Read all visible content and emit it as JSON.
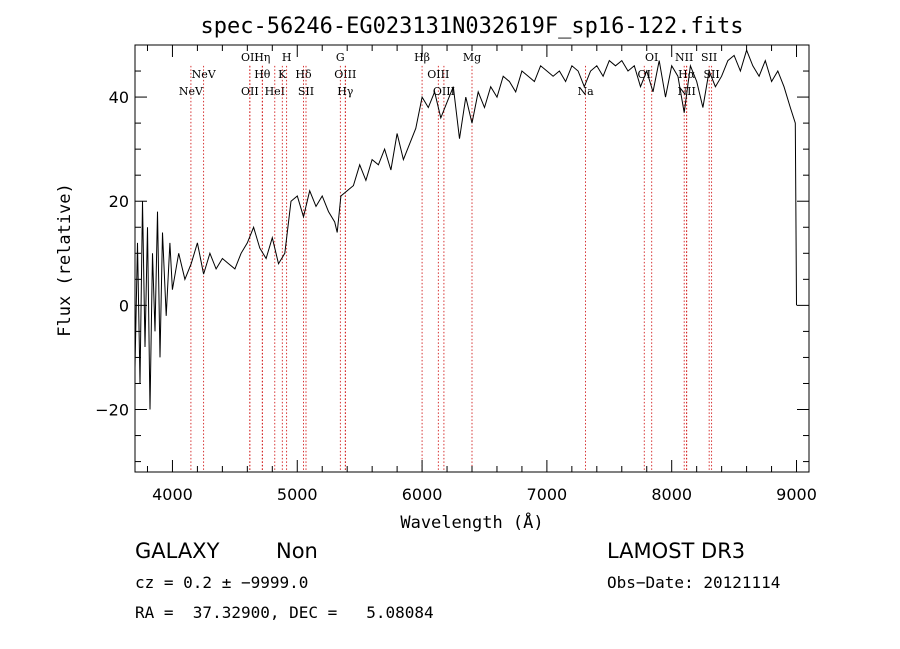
{
  "chart_data": {
    "type": "line",
    "title": "spec-56246-EG023131N032619F_sp16-122.fits",
    "xlabel": "Wavelength (Å)",
    "ylabel": "Flux (relative)",
    "xlim": [
      3700,
      9100
    ],
    "ylim": [
      -32,
      50
    ],
    "xticks": [
      4000,
      5000,
      6000,
      7000,
      8000,
      9000
    ],
    "xtick_labels": [
      "4000",
      "5000",
      "6000",
      "7000",
      "8000",
      "9000"
    ],
    "yticks": [
      -20,
      0,
      20,
      40
    ],
    "ytick_labels": [
      "−20",
      "0",
      "20",
      "40"
    ],
    "series": [
      {
        "name": "flux",
        "x": [
          3700,
          3720,
          3740,
          3760,
          3780,
          3800,
          3820,
          3840,
          3860,
          3880,
          3900,
          3920,
          3950,
          3980,
          4000,
          4050,
          4100,
          4150,
          4200,
          4250,
          4300,
          4350,
          4400,
          4450,
          4500,
          4550,
          4600,
          4650,
          4700,
          4750,
          4800,
          4850,
          4900,
          4950,
          5000,
          5050,
          5100,
          5150,
          5200,
          5250,
          5300,
          5320,
          5350,
          5400,
          5450,
          5500,
          5550,
          5600,
          5650,
          5700,
          5750,
          5800,
          5850,
          5900,
          5950,
          6000,
          6050,
          6100,
          6150,
          6200,
          6250,
          6300,
          6350,
          6400,
          6450,
          6500,
          6550,
          6600,
          6650,
          6700,
          6750,
          6800,
          6850,
          6900,
          6950,
          7000,
          7050,
          7100,
          7150,
          7200,
          7250,
          7300,
          7350,
          7400,
          7450,
          7500,
          7550,
          7600,
          7650,
          7700,
          7750,
          7800,
          7850,
          7900,
          7950,
          8000,
          8050,
          8100,
          8150,
          8200,
          8250,
          8300,
          8350,
          8400,
          8450,
          8500,
          8550,
          8600,
          8650,
          8700,
          8750,
          8800,
          8850,
          8900,
          8950,
          8990,
          9000
        ],
        "y": [
          -12,
          12,
          -15,
          20,
          -8,
          15,
          -20,
          10,
          -5,
          18,
          -10,
          14,
          -2,
          12,
          3,
          10,
          5,
          8,
          12,
          6,
          10,
          7,
          9,
          8,
          7,
          10,
          12,
          15,
          11,
          9,
          13,
          8,
          10,
          20,
          21,
          17,
          22,
          19,
          21,
          18,
          16,
          14,
          21,
          22,
          23,
          27,
          24,
          28,
          27,
          30,
          26,
          33,
          28,
          31,
          34,
          40,
          38,
          41,
          36,
          39,
          42,
          32,
          40,
          35,
          41,
          38,
          42,
          40,
          44,
          43,
          41,
          45,
          44,
          43,
          46,
          45,
          44,
          45,
          43,
          46,
          45,
          42,
          45,
          46,
          44,
          47,
          46,
          47,
          45,
          46,
          42,
          45,
          41,
          47,
          40,
          46,
          44,
          37,
          46,
          43,
          38,
          45,
          42,
          44,
          47,
          48,
          45,
          49,
          46,
          44,
          47,
          43,
          45,
          42,
          38,
          35,
          0
        ]
      }
    ],
    "lines": [
      {
        "name": "NeV",
        "x": 4148,
        "row": 1
      },
      {
        "name": "NeV",
        "x": 4250,
        "row": 0
      },
      {
        "name": "OII",
        "x": 4620,
        "row": 2
      },
      {
        "name": "OII",
        "x": 4620,
        "row": -1
      },
      {
        "name": "Hη",
        "x": 4720,
        "row": -1
      },
      {
        "name": "Hθ",
        "x": 4720,
        "row": 0
      },
      {
        "name": "HeI",
        "x": 4820,
        "row": 2
      },
      {
        "name": "K",
        "x": 4880,
        "row": 0
      },
      {
        "name": "H",
        "x": 4915,
        "row": -1
      },
      {
        "name": "Hδ",
        "x": 5050,
        "row": 0
      },
      {
        "name": "SII",
        "x": 5070,
        "row": 2
      },
      {
        "name": "G",
        "x": 5345,
        "row": -1
      },
      {
        "name": "OIII",
        "x": 5385,
        "row": 0
      },
      {
        "name": "Hγ",
        "x": 5385,
        "row": 2
      },
      {
        "name": "Hβ",
        "x": 6000,
        "row": -1
      },
      {
        "name": "OIII",
        "x": 6130,
        "row": 0
      },
      {
        "name": "OIII",
        "x": 6175,
        "row": 2
      },
      {
        "name": "Mg",
        "x": 6400,
        "row": -1
      },
      {
        "name": "Na",
        "x": 7310,
        "row": 2
      },
      {
        "name": "OI",
        "x": 7780,
        "row": 0
      },
      {
        "name": "OI",
        "x": 7840,
        "row": -1
      },
      {
        "name": "NII",
        "x": 8100,
        "row": -1
      },
      {
        "name": "Hα",
        "x": 8120,
        "row": 0
      },
      {
        "name": "NII",
        "x": 8120,
        "row": 2
      },
      {
        "name": "SII",
        "x": 8300,
        "row": -1
      },
      {
        "name": "SII",
        "x": 8320,
        "row": 0
      }
    ]
  },
  "info": {
    "object_class": "GALAXY",
    "subclass": "Non",
    "survey": "LAMOST DR3",
    "cz_line": "cz = 0.2 ± −9999.0",
    "obs_date": "Obs−Date: 20121114",
    "radec_line": "RA =  37.32900, DEC =   5.08084"
  },
  "colors": {
    "spectrum": "#000000",
    "line_markers": "#cc0000"
  }
}
